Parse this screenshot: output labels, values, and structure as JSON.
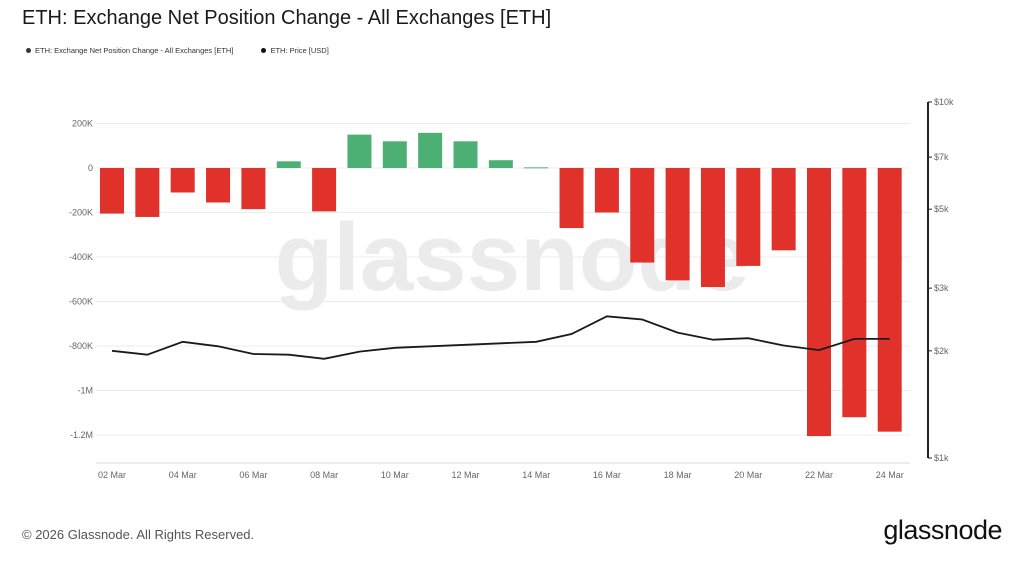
{
  "title": "ETH: Exchange Net Position Change - All Exchanges [ETH]",
  "legend": {
    "series1": "ETH: Exchange Net Position Change - All Exchanges [ETH]",
    "series2": "ETH: Price [USD]"
  },
  "footer": "© 2026 Glassnode. All Rights Reserved.",
  "brand": "glassnode",
  "watermark": "glassnode",
  "colors": {
    "positive": "#4caf73",
    "negative": "#e0312a",
    "price": "#1a1a1a",
    "grid": "#ececec"
  },
  "chart_data": {
    "type": "bar",
    "x": [
      "02 Mar",
      "03 Mar",
      "04 Mar",
      "05 Mar",
      "06 Mar",
      "07 Mar",
      "08 Mar",
      "09 Mar",
      "10 Mar",
      "11 Mar",
      "12 Mar",
      "13 Mar",
      "14 Mar",
      "15 Mar",
      "16 Mar",
      "17 Mar",
      "18 Mar",
      "19 Mar",
      "20 Mar",
      "21 Mar",
      "22 Mar",
      "23 Mar",
      "24 Mar"
    ],
    "x_tick_labels": [
      "02 Mar",
      "04 Mar",
      "06 Mar",
      "08 Mar",
      "10 Mar",
      "12 Mar",
      "14 Mar",
      "16 Mar",
      "18 Mar",
      "20 Mar",
      "22 Mar",
      "24 Mar"
    ],
    "series": [
      {
        "name": "ETH: Exchange Net Position Change - All Exchanges [ETH]",
        "axis": "left",
        "kind": "bar",
        "values": [
          -205000,
          -220000,
          -110000,
          -155000,
          -185000,
          30000,
          -195000,
          150000,
          120000,
          158000,
          120000,
          35000,
          3000,
          -270000,
          -200000,
          -425000,
          -505000,
          -535000,
          -440000,
          -370000,
          -1205000,
          -1120000,
          -1185000
        ]
      },
      {
        "name": "ETH: Price [USD]",
        "axis": "right",
        "kind": "line",
        "values": [
          2000,
          1950,
          2120,
          2060,
          1960,
          1950,
          1900,
          1990,
          2040,
          2060,
          2080,
          2100,
          2120,
          2230,
          2500,
          2450,
          2250,
          2150,
          2170,
          2070,
          2010,
          2160,
          2160
        ]
      }
    ],
    "y_left": {
      "ticks": [
        200000,
        0,
        -200000,
        -400000,
        -600000,
        -800000,
        -1000000,
        -1200000
      ],
      "tick_labels": [
        "200K",
        "0",
        "-200K",
        "-400K",
        "-600K",
        "-800K",
        "-1M",
        "-1.2M"
      ],
      "range": [
        -1200000,
        200000
      ]
    },
    "y_right": {
      "scale": "log",
      "ticks": [
        10000,
        7000,
        5000,
        3000,
        2000,
        1000
      ],
      "tick_labels": [
        "$10k",
        "$7k",
        "$5k",
        "$3k",
        "$2k",
        "$1k"
      ],
      "range": [
        1000,
        10000
      ]
    },
    "grid": true
  }
}
